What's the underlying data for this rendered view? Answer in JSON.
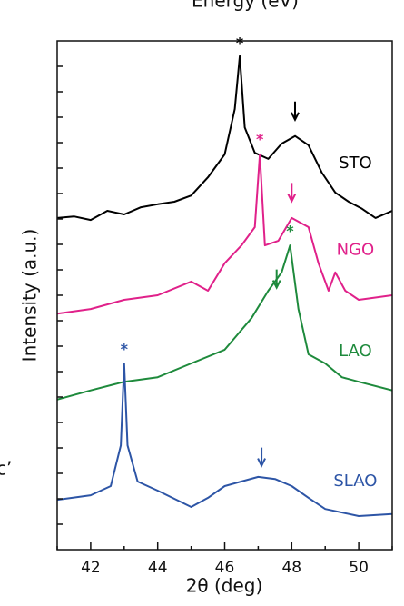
{
  "chart_data": {
    "type": "line",
    "xlabel": "2θ (deg)",
    "ylabel": "Intensity (a.u.)",
    "xlim": [
      41,
      51
    ],
    "xticks": [
      42,
      44,
      46,
      48,
      50
    ],
    "xminorticks": [
      41,
      43,
      45,
      47,
      49,
      51
    ],
    "ylim": [
      0,
      100
    ],
    "yticks": [
      5,
      10,
      15,
      20,
      25,
      30,
      35,
      40,
      45,
      50,
      55,
      60,
      65,
      70,
      75,
      80,
      85,
      90,
      95
    ],
    "ytick_labels": false,
    "grid": false,
    "series": [
      {
        "name": "STO",
        "color": "#000000",
        "x": [
          41,
          41.5,
          42,
          42.5,
          43,
          43.5,
          44,
          44.5,
          45,
          45.5,
          46,
          46.3,
          46.45,
          46.6,
          46.9,
          47.3,
          47.7,
          48.1,
          48.5,
          48.9,
          49.3,
          49.7,
          50.1,
          50.5,
          51
        ],
        "values": [
          65.2,
          65.5,
          64.8,
          66.6,
          65.9,
          67.3,
          67.9,
          68.4,
          69.6,
          73.2,
          77.7,
          86.6,
          97.0,
          83.0,
          78.0,
          76.8,
          79.8,
          81.3,
          79.5,
          74.1,
          70.2,
          68.4,
          67.0,
          65.2,
          66.6
        ],
        "label_pos": [
          49.9,
          75.9
        ],
        "peak": [
          46.45,
          99.5
        ],
        "arrow": [
          48.1,
          84.5
        ]
      },
      {
        "name": "NGO",
        "color": "#e0218a",
        "x": [
          41,
          42,
          43,
          44,
          45,
          45.5,
          46,
          46.5,
          46.9,
          47.05,
          47.2,
          47.6,
          48,
          48.5,
          48.8,
          49.1,
          49.3,
          49.6,
          50,
          51
        ],
        "values": [
          46.4,
          47.3,
          49.1,
          50.0,
          52.7,
          50.9,
          56.3,
          59.8,
          63.4,
          77.7,
          59.8,
          60.7,
          65.2,
          63.4,
          56.3,
          50.9,
          54.5,
          50.9,
          49.1,
          50.0
        ],
        "label_pos": [
          49.9,
          58.8
        ],
        "peak": [
          47.05,
          80.5
        ],
        "arrow": [
          48.0,
          68.5
        ]
      },
      {
        "name": "LAO",
        "color": "#1e8a3c",
        "x": [
          41,
          42,
          43,
          44,
          45,
          46,
          46.8,
          47.3,
          47.7,
          47.95,
          48.2,
          48.5,
          49,
          49.5,
          50,
          51
        ],
        "values": [
          29.5,
          31.3,
          33.0,
          33.9,
          36.6,
          39.3,
          45.5,
          50.9,
          54.5,
          59.8,
          47.3,
          38.4,
          36.6,
          33.9,
          33.0,
          31.3
        ],
        "label_pos": [
          49.9,
          38.9
        ],
        "peak": [
          47.95,
          62.5
        ],
        "arrow": [
          47.55,
          51.5
        ]
      },
      {
        "name": "SLAO",
        "color": "#2d55a6",
        "x": [
          41,
          42,
          42.6,
          42.9,
          43.0,
          43.1,
          43.4,
          44,
          45,
          45.5,
          46,
          47,
          47.5,
          48,
          48.5,
          49,
          50,
          51
        ],
        "values": [
          9.8,
          10.7,
          12.5,
          20.5,
          36.6,
          20.5,
          13.4,
          11.6,
          8.4,
          10.2,
          12.5,
          14.3,
          13.9,
          12.5,
          10.2,
          8.0,
          6.6,
          7.0
        ],
        "label_pos": [
          49.9,
          13.4
        ],
        "peak": [
          43.0,
          39.3
        ],
        "arrow": [
          47.1,
          16.5
        ]
      }
    ],
    "peak_symbol": "*",
    "fragments": [
      "Energy (eV)",
      "c’"
    ]
  }
}
